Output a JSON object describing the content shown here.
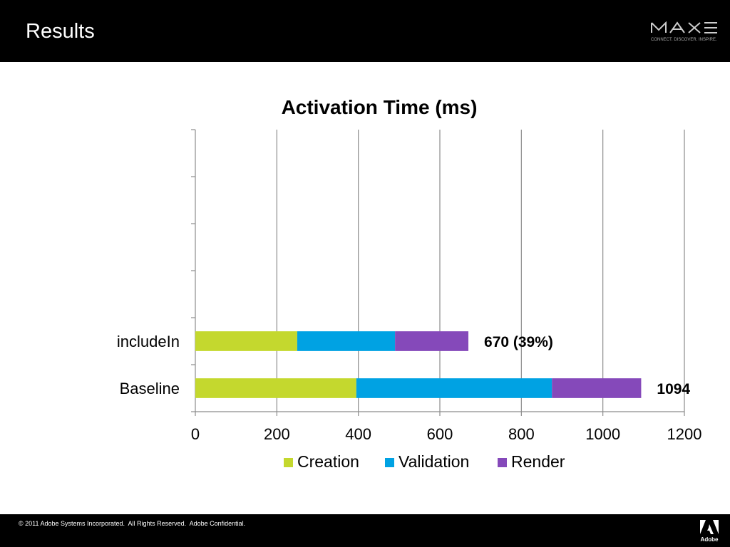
{
  "header": {
    "title": "Results"
  },
  "logo": {
    "name": "MAX",
    "tagline": "CONNECT. DISCOVER. INSPIRE."
  },
  "footer": {
    "copyright": "© 2011 Adobe Systems Incorporated.  All Rights Reserved.  Adobe Confidential.",
    "brand": "Adobe"
  },
  "chart_data": {
    "type": "bar",
    "orientation": "horizontal",
    "stacked": true,
    "title": "Activation Time (ms)",
    "xlabel": "",
    "ylabel": "",
    "categories": [
      "includeIn",
      "Baseline"
    ],
    "series": [
      {
        "name": "Creation",
        "color": "#c4d82e",
        "values": [
          250,
          395
        ]
      },
      {
        "name": "Validation",
        "color": "#00a2e3",
        "values": [
          240,
          480
        ]
      },
      {
        "name": "Render",
        "color": "#8549ba",
        "values": [
          180,
          219
        ]
      }
    ],
    "totals_labels": [
      "670 (39%)",
      "1094"
    ],
    "xlim": [
      0,
      1200
    ],
    "xticks": [
      0,
      200,
      400,
      600,
      800,
      1000,
      1200
    ],
    "grid": "vertical",
    "legend": "bottom"
  }
}
